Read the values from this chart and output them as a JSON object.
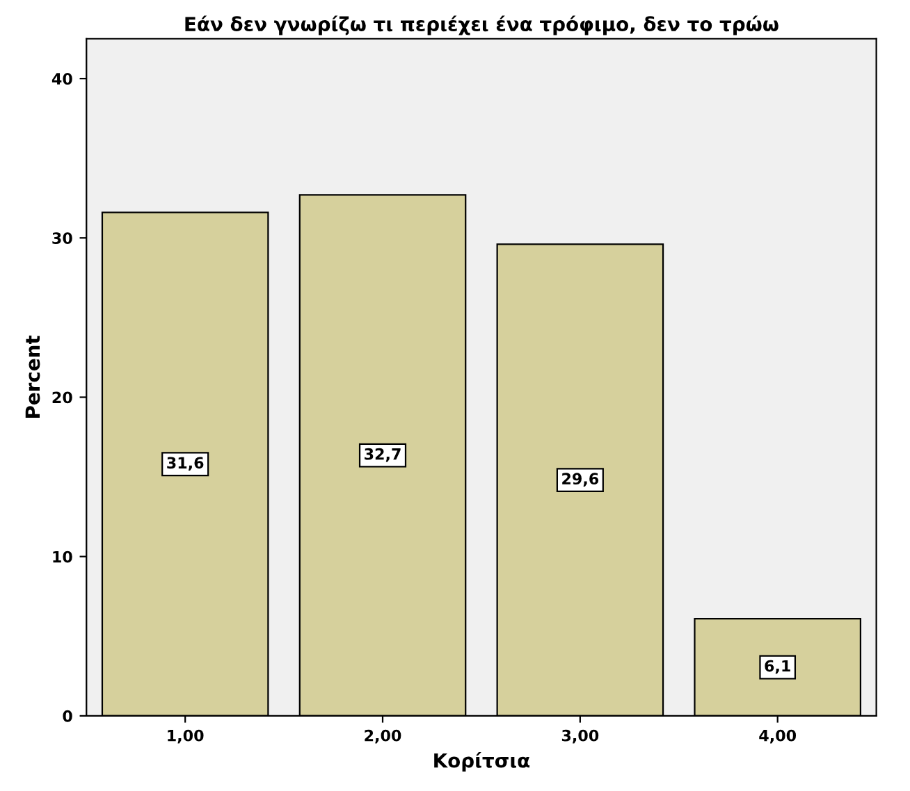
{
  "chart_data": {
    "type": "bar",
    "title": "Εάν δεν γνωρίζω τι περιέχει ένα τρόφιμο, δεν το τρώω",
    "xlabel": "Κορίτσια",
    "ylabel": "Percent",
    "categories": [
      "1,00",
      "2,00",
      "3,00",
      "4,00"
    ],
    "values": [
      31.6,
      32.7,
      29.6,
      6.1
    ],
    "value_labels": [
      "31,6",
      "32,7",
      "29,6",
      "6,1"
    ],
    "color": "#d6d09c",
    "ylim": [
      0,
      42.5
    ],
    "yticks": [
      0,
      10,
      20,
      30,
      40
    ],
    "grid": false,
    "legend": false
  }
}
